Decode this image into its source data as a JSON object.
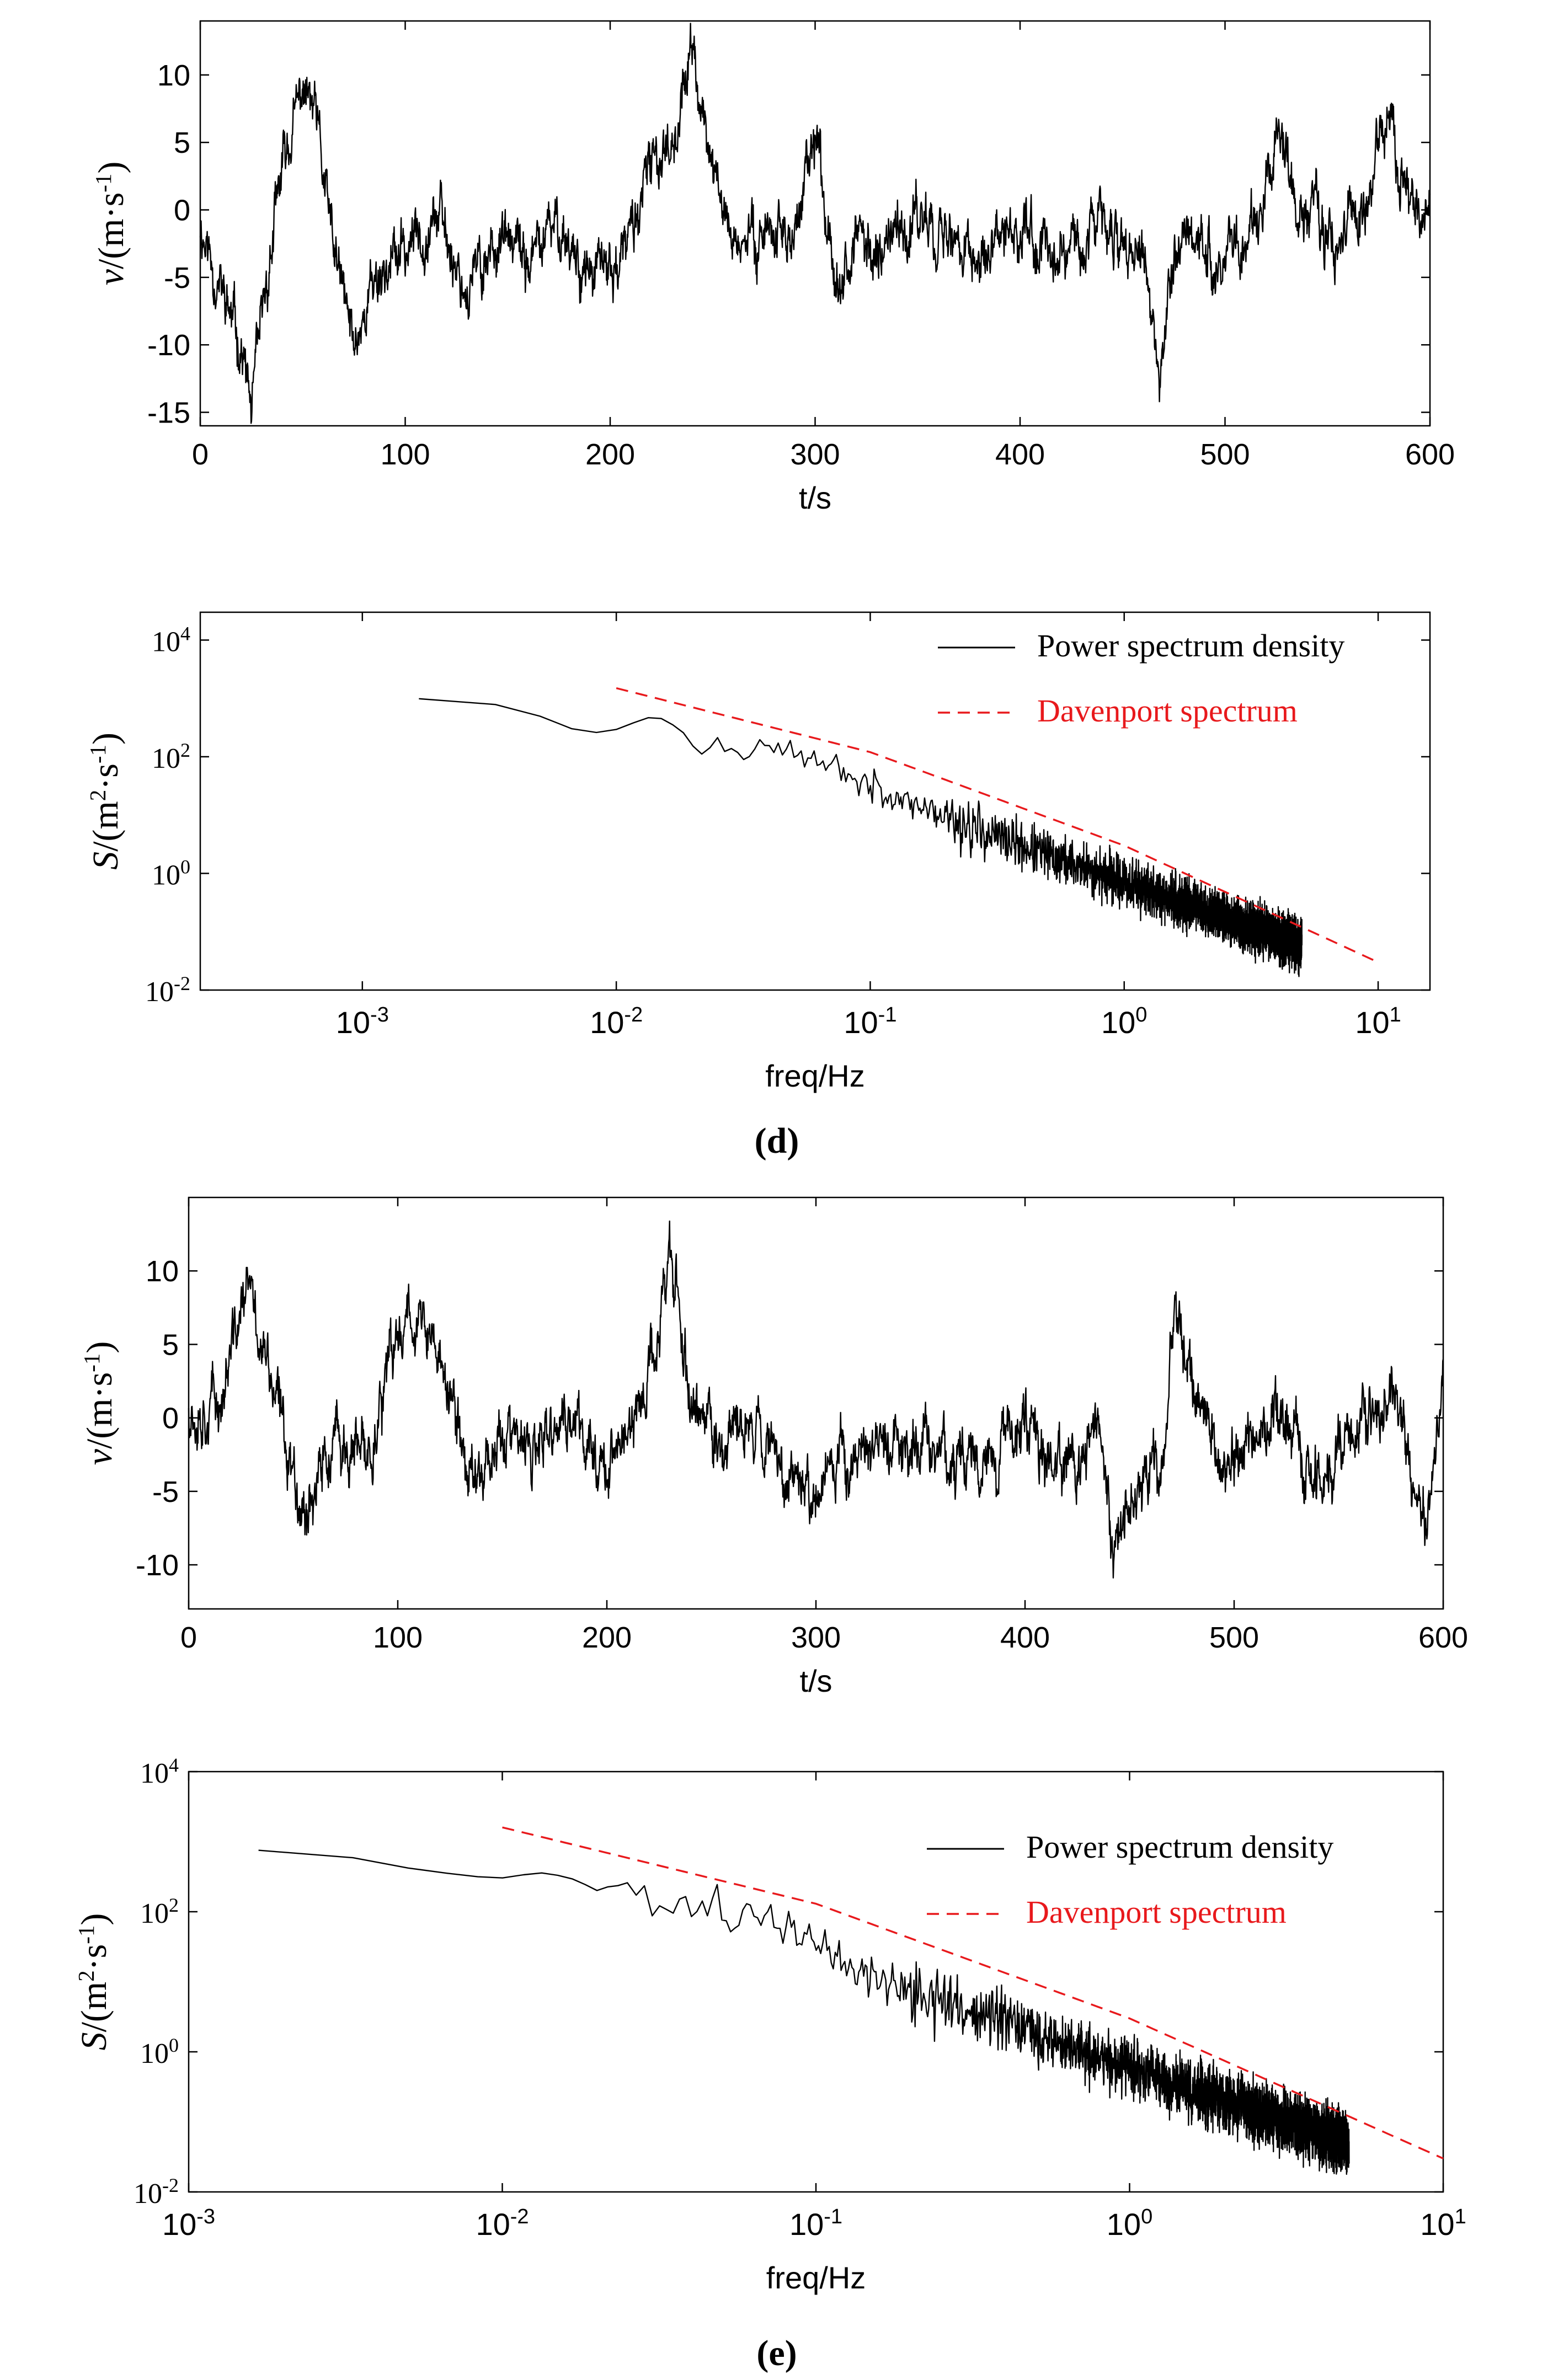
{
  "captions": [
    "(d)",
    "(e)"
  ],
  "chart_data": [
    {
      "type": "line",
      "panel": "d-top",
      "xlabel": "t/s",
      "ylabel": "v/(m·s-1)",
      "xlim": [
        0,
        600
      ],
      "ylim": [
        -16,
        14
      ],
      "xticks": [
        0,
        100,
        200,
        300,
        400,
        500,
        600
      ],
      "yticks": [
        -15,
        -10,
        -5,
        0,
        5,
        10
      ],
      "grid": false,
      "series": [
        {
          "color": "#000000",
          "anchors_x": [
            0,
            10,
            20,
            25,
            32,
            40,
            50,
            56,
            65,
            75,
            85,
            100,
            115,
            130,
            145,
            160,
            175,
            190,
            205,
            220,
            232,
            240,
            246,
            255,
            265,
            275,
            290,
            300,
            310,
            320,
            340,
            355,
            370,
            385,
            400,
            415,
            430,
            445,
            460,
            468,
            472,
            480,
            495,
            510,
            525,
            540,
            555,
            570,
            578,
            585,
            595,
            600
          ],
          "anchors_y": [
            -1,
            -6,
            -10,
            -15,
            -6,
            3,
            9,
            7,
            -3,
            -10,
            -5,
            -3,
            0,
            -6,
            -2,
            -4,
            -1,
            -5,
            -4,
            3,
            6,
            12,
            6,
            0,
            -3,
            -1,
            -2,
            5,
            -4,
            -3,
            -2,
            0,
            -3,
            -4,
            -1,
            -3,
            -2,
            -1,
            -4,
            -13,
            -7,
            -1,
            -3,
            -2,
            4,
            -1,
            -2,
            1,
            8,
            2,
            -1,
            -1
          ],
          "noise": 2.0,
          "sample_step": 0.2
        }
      ]
    },
    {
      "type": "line",
      "panel": "d-bottom",
      "xlabel": "freq/Hz",
      "ylabel": "S/(m2·s-1)",
      "xscale": "log",
      "yscale": "log",
      "xlim": [
        0.00023,
        16
      ],
      "ylim": [
        0.01,
        30000
      ],
      "xticks": [
        "10-3",
        "10-2",
        "10-1",
        "100",
        "101"
      ],
      "yticks": [
        "10-2",
        "100",
        "102",
        "104"
      ],
      "legend_position": "top-right",
      "grid": false,
      "series": [
        {
          "name": "Power spectrum density",
          "color": "#000000",
          "dash": "solid",
          "f_min": 0.00167,
          "f_max": 5,
          "anchors_x": [
            0.00167,
            0.004,
            0.007,
            0.012,
            0.018,
            0.024,
            0.035,
            0.06,
            0.1,
            0.3,
            1,
            5
          ],
          "anchors_y": [
            800,
            550,
            330,
            380,
            320,
            120,
            170,
            90,
            32,
            4.5,
            0.7,
            0.06
          ]
        },
        {
          "name": "Davenport spectrum",
          "color": "#e8191c",
          "dash": "dashed",
          "x": [
            0.01,
            0.1,
            1,
            10
          ],
          "y": [
            1500,
            120,
            3,
            0.03
          ]
        }
      ]
    },
    {
      "type": "line",
      "panel": "e-top",
      "xlabel": "t/s",
      "ylabel": "v/(m·s-1)",
      "xlim": [
        0,
        600
      ],
      "ylim": [
        -13,
        15
      ],
      "xticks": [
        0,
        100,
        200,
        300,
        400,
        500,
        600
      ],
      "yticks": [
        -10,
        -5,
        0,
        5,
        10
      ],
      "grid": false,
      "series": [
        {
          "color": "#000000",
          "anchors_x": [
            0,
            15,
            28,
            40,
            55,
            70,
            85,
            105,
            120,
            135,
            150,
            165,
            180,
            200,
            215,
            225,
            230,
            240,
            255,
            270,
            285,
            300,
            320,
            340,
            360,
            380,
            400,
            420,
            435,
            442,
            450,
            465,
            472,
            480,
            495,
            505,
            520,
            540,
            560,
            575,
            585,
            592,
            600
          ],
          "anchors_y": [
            1,
            1,
            9,
            2,
            -6,
            -2,
            -3,
            8,
            4,
            -4,
            -1,
            -3,
            0,
            -3,
            0,
            6,
            12,
            1,
            -2,
            0,
            -3,
            -5,
            -2,
            -2,
            -2,
            -3,
            0,
            -4,
            -1,
            -10,
            -5,
            -4,
            8,
            2,
            -4,
            -2,
            0,
            -4,
            -1,
            2,
            -4,
            -7,
            3
          ],
          "noise": 2.0,
          "sample_step": 0.2
        }
      ]
    },
    {
      "type": "line",
      "panel": "e-bottom",
      "xlabel": "freq/Hz",
      "ylabel": "S/(m2·s-1)",
      "xscale": "log",
      "yscale": "log",
      "xlim": [
        0.001,
        10
      ],
      "ylim": [
        0.01,
        10000
      ],
      "xticks": [
        "10-3",
        "10-2",
        "10-1",
        "100",
        "101"
      ],
      "yticks": [
        "10-2",
        "100",
        "102",
        "104"
      ],
      "legend_position": "top-right",
      "grid": false,
      "series": [
        {
          "name": "Power spectrum density",
          "color": "#000000",
          "dash": "solid",
          "f_min": 0.00167,
          "f_max": 5,
          "anchors_x": [
            0.00167,
            0.005,
            0.009,
            0.015,
            0.022,
            0.03,
            0.05,
            0.08,
            0.15,
            0.4,
            1.5,
            5
          ],
          "anchors_y": [
            600,
            380,
            420,
            250,
            320,
            150,
            110,
            60,
            12,
            2.5,
            0.3,
            0.05
          ]
        },
        {
          "name": "Davenport spectrum",
          "color": "#e8191c",
          "dash": "dashed",
          "x": [
            0.01,
            0.1,
            1,
            10
          ],
          "y": [
            1600,
            130,
            3,
            0.03
          ]
        }
      ]
    }
  ]
}
